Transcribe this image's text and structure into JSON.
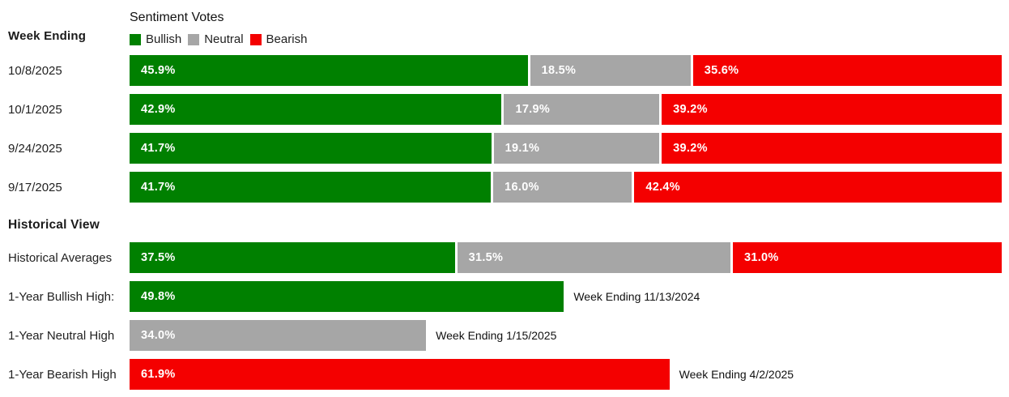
{
  "colors": {
    "bullish": "#008000",
    "neutral": "#a6a6a6",
    "bearish": "#f40000",
    "bar_text": "#ffffff"
  },
  "header": {
    "week_ending_label": "Week Ending",
    "title": "Sentiment Votes",
    "legend": [
      {
        "label": "Bullish"
      },
      {
        "label": "Neutral"
      },
      {
        "label": "Bearish"
      }
    ]
  },
  "weekly_rows": [
    {
      "date": "10/8/2025",
      "bullish": 45.9,
      "bullish_label": "45.9%",
      "neutral": 18.5,
      "neutral_label": "18.5%",
      "bearish": 35.6,
      "bearish_label": "35.6%"
    },
    {
      "date": "10/1/2025",
      "bullish": 42.9,
      "bullish_label": "42.9%",
      "neutral": 17.9,
      "neutral_label": "17.9%",
      "bearish": 39.2,
      "bearish_label": "39.2%"
    },
    {
      "date": "9/24/2025",
      "bullish": 41.7,
      "bullish_label": "41.7%",
      "neutral": 19.1,
      "neutral_label": "19.1%",
      "bearish": 39.2,
      "bearish_label": "39.2%"
    },
    {
      "date": "9/17/2025",
      "bullish": 41.7,
      "bullish_label": "41.7%",
      "neutral": 16.0,
      "neutral_label": "16.0%",
      "bearish": 42.4,
      "bearish_label": "42.4%"
    }
  ],
  "historical": {
    "heading": "Historical View",
    "averages": {
      "label": "Historical Averages",
      "bullish": 37.5,
      "bullish_label": "37.5%",
      "neutral": 31.5,
      "neutral_label": "31.5%",
      "bearish": 31.0,
      "bearish_label": "31.0%"
    },
    "bullish_high": {
      "label": "1-Year Bullish High:",
      "value": 49.8,
      "value_label": "49.8%",
      "annotation": "Week Ending 11/13/2024"
    },
    "neutral_high": {
      "label": "1-Year Neutral High",
      "value": 34.0,
      "value_label": "34.0%",
      "annotation": "Week Ending 1/15/2025"
    },
    "bearish_high": {
      "label": "1-Year Bearish High",
      "value": 61.9,
      "value_label": "61.9%",
      "annotation": "Week Ending 4/2/2025"
    }
  },
  "chart_data": {
    "type": "bar",
    "orientation": "horizontal",
    "stacked": true,
    "title": "Sentiment Votes",
    "legend": [
      "Bullish",
      "Neutral",
      "Bearish"
    ],
    "legend_position": "top",
    "units": "percent",
    "xlim": [
      0,
      100
    ],
    "categories": [
      "10/8/2025",
      "10/1/2025",
      "9/24/2025",
      "9/17/2025"
    ],
    "series": [
      {
        "name": "Bullish",
        "color": "#008000",
        "values": [
          45.9,
          42.9,
          41.7,
          41.7
        ]
      },
      {
        "name": "Neutral",
        "color": "#a6a6a6",
        "values": [
          18.5,
          17.9,
          19.1,
          16.0
        ]
      },
      {
        "name": "Bearish",
        "color": "#f40000",
        "values": [
          35.6,
          39.2,
          39.2,
          42.4
        ]
      }
    ],
    "historical_averages": {
      "Bullish": 37.5,
      "Neutral": 31.5,
      "Bearish": 31.0
    },
    "one_year_highs": [
      {
        "name": "1-Year Bullish High",
        "value": 49.8,
        "week_ending": "11/13/2024"
      },
      {
        "name": "1-Year Neutral High",
        "value": 34.0,
        "week_ending": "1/15/2025"
      },
      {
        "name": "1-Year Bearish High",
        "value": 61.9,
        "week_ending": "4/2/2025"
      }
    ]
  }
}
